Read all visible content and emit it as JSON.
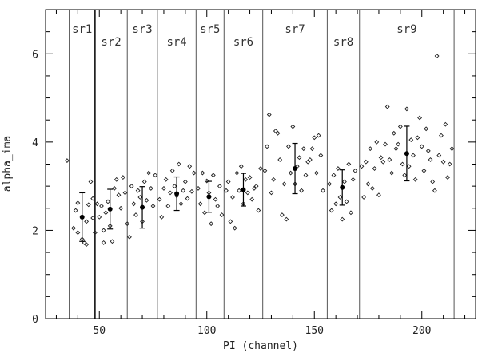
{
  "chart_data": {
    "type": "scatter",
    "title": "",
    "xlabel": "PI (channel)",
    "ylabel": "alpha_ima",
    "xlim": [
      25,
      225
    ],
    "ylim": [
      0,
      7
    ],
    "xticks": [
      50,
      100,
      150,
      200
    ],
    "yticks": [
      0,
      2,
      4,
      6
    ],
    "grid": false,
    "regions": [
      {
        "label": "sr1",
        "start": 36,
        "end": 48
      },
      {
        "label": "sr2",
        "start": 48,
        "end": 63
      },
      {
        "label": "sr3",
        "start": 63,
        "end": 77
      },
      {
        "label": "sr4",
        "start": 77,
        "end": 95
      },
      {
        "label": "sr5",
        "start": 95,
        "end": 108
      },
      {
        "label": "sr6",
        "start": 108,
        "end": 126
      },
      {
        "label": "sr7",
        "start": 126,
        "end": 156
      },
      {
        "label": "sr8",
        "start": 156,
        "end": 171
      },
      {
        "label": "sr9",
        "start": 171,
        "end": 215
      }
    ],
    "region_means": [
      {
        "x": 42,
        "y": 2.3,
        "err": 0.55
      },
      {
        "x": 55,
        "y": 2.48,
        "err": 0.45
      },
      {
        "x": 70,
        "y": 2.52,
        "err": 0.47
      },
      {
        "x": 86,
        "y": 2.83,
        "err": 0.38
      },
      {
        "x": 101,
        "y": 2.76,
        "err": 0.35
      },
      {
        "x": 117,
        "y": 2.92,
        "err": 0.37
      },
      {
        "x": 141,
        "y": 3.4,
        "err": 0.57
      },
      {
        "x": 163,
        "y": 2.97,
        "err": 0.4
      },
      {
        "x": 193,
        "y": 3.74,
        "err": 0.62
      }
    ],
    "points": [
      [
        35,
        3.58
      ],
      [
        38,
        2.05
      ],
      [
        39,
        2.45
      ],
      [
        40,
        2.62
      ],
      [
        40,
        1.95
      ],
      [
        42,
        1.8
      ],
      [
        43,
        1.72
      ],
      [
        44,
        1.68
      ],
      [
        44,
        2.2
      ],
      [
        45,
        2.58
      ],
      [
        46,
        3.1
      ],
      [
        47,
        2.72
      ],
      [
        47,
        2.28
      ],
      [
        48,
        1.95
      ],
      [
        49,
        2.6
      ],
      [
        50,
        2.3
      ],
      [
        51,
        2.55
      ],
      [
        52,
        2.0
      ],
      [
        52,
        1.72
      ],
      [
        53,
        2.4
      ],
      [
        54,
        2.65
      ],
      [
        55,
        2.1
      ],
      [
        56,
        1.75
      ],
      [
        57,
        2.95
      ],
      [
        58,
        3.15
      ],
      [
        59,
        2.8
      ],
      [
        60,
        2.5
      ],
      [
        61,
        3.2
      ],
      [
        62,
        2.85
      ],
      [
        63,
        2.15
      ],
      [
        64,
        1.85
      ],
      [
        65,
        3.0
      ],
      [
        66,
        2.6
      ],
      [
        67,
        2.35
      ],
      [
        68,
        2.9
      ],
      [
        69,
        2.75
      ],
      [
        70,
        2.2
      ],
      [
        71,
        3.1
      ],
      [
        72,
        2.68
      ],
      [
        73,
        3.3
      ],
      [
        74,
        2.95
      ],
      [
        75,
        2.55
      ],
      [
        76,
        3.25
      ],
      [
        78,
        2.7
      ],
      [
        79,
        2.3
      ],
      [
        80,
        2.95
      ],
      [
        81,
        3.15
      ],
      [
        82,
        2.55
      ],
      [
        83,
        2.85
      ],
      [
        84,
        3.35
      ],
      [
        85,
        3.0
      ],
      [
        86,
        2.78
      ],
      [
        87,
        3.5
      ],
      [
        88,
        2.6
      ],
      [
        89,
        2.9
      ],
      [
        90,
        3.1
      ],
      [
        91,
        2.72
      ],
      [
        92,
        3.45
      ],
      [
        93,
        2.88
      ],
      [
        94,
        3.3
      ],
      [
        96,
        2.95
      ],
      [
        97,
        2.6
      ],
      [
        98,
        3.3
      ],
      [
        99,
        2.4
      ],
      [
        100,
        3.12
      ],
      [
        101,
        2.85
      ],
      [
        102,
        2.15
      ],
      [
        103,
        3.25
      ],
      [
        104,
        2.7
      ],
      [
        105,
        2.55
      ],
      [
        106,
        3.0
      ],
      [
        107,
        2.35
      ],
      [
        109,
        2.9
      ],
      [
        110,
        3.1
      ],
      [
        111,
        2.2
      ],
      [
        112,
        2.75
      ],
      [
        113,
        2.05
      ],
      [
        114,
        3.3
      ],
      [
        115,
        2.9
      ],
      [
        116,
        3.45
      ],
      [
        117,
        2.6
      ],
      [
        118,
        3.15
      ],
      [
        119,
        2.85
      ],
      [
        120,
        3.2
      ],
      [
        121,
        2.7
      ],
      [
        122,
        2.95
      ],
      [
        123,
        3.0
      ],
      [
        124,
        2.45
      ],
      [
        125,
        3.4
      ],
      [
        127,
        3.35
      ],
      [
        128,
        3.9
      ],
      [
        129,
        4.62
      ],
      [
        130,
        2.85
      ],
      [
        131,
        3.15
      ],
      [
        132,
        4.25
      ],
      [
        133,
        4.2
      ],
      [
        134,
        3.6
      ],
      [
        135,
        2.35
      ],
      [
        136,
        3.05
      ],
      [
        137,
        2.25
      ],
      [
        138,
        3.9
      ],
      [
        139,
        3.3
      ],
      [
        140,
        4.35
      ],
      [
        141,
        3.05
      ],
      [
        142,
        3.45
      ],
      [
        143,
        3.65
      ],
      [
        144,
        2.9
      ],
      [
        145,
        3.85
      ],
      [
        146,
        3.25
      ],
      [
        147,
        3.55
      ],
      [
        148,
        3.6
      ],
      [
        149,
        3.85
      ],
      [
        150,
        4.1
      ],
      [
        151,
        3.3
      ],
      [
        152,
        4.15
      ],
      [
        153,
        3.7
      ],
      [
        154,
        2.9
      ],
      [
        157,
        3.05
      ],
      [
        158,
        2.45
      ],
      [
        159,
        3.25
      ],
      [
        160,
        2.6
      ],
      [
        161,
        3.4
      ],
      [
        162,
        2.75
      ],
      [
        163,
        2.25
      ],
      [
        164,
        3.1
      ],
      [
        165,
        2.65
      ],
      [
        166,
        3.5
      ],
      [
        167,
        2.4
      ],
      [
        168,
        3.15
      ],
      [
        169,
        3.35
      ],
      [
        172,
        3.45
      ],
      [
        173,
        2.75
      ],
      [
        174,
        3.55
      ],
      [
        175,
        3.05
      ],
      [
        176,
        3.85
      ],
      [
        177,
        2.95
      ],
      [
        178,
        3.4
      ],
      [
        179,
        4.0
      ],
      [
        180,
        2.8
      ],
      [
        181,
        3.65
      ],
      [
        182,
        3.55
      ],
      [
        183,
        3.95
      ],
      [
        184,
        4.8
      ],
      [
        185,
        3.6
      ],
      [
        186,
        3.3
      ],
      [
        187,
        4.2
      ],
      [
        188,
        3.85
      ],
      [
        189,
        3.95
      ],
      [
        190,
        4.35
      ],
      [
        191,
        3.5
      ],
      [
        192,
        3.25
      ],
      [
        193,
        4.75
      ],
      [
        194,
        3.45
      ],
      [
        195,
        4.05
      ],
      [
        196,
        3.7
      ],
      [
        197,
        3.15
      ],
      [
        198,
        4.1
      ],
      [
        199,
        4.55
      ],
      [
        200,
        3.9
      ],
      [
        201,
        3.35
      ],
      [
        202,
        4.3
      ],
      [
        203,
        3.8
      ],
      [
        204,
        3.6
      ],
      [
        205,
        3.1
      ],
      [
        206,
        2.9
      ],
      [
        207,
        5.95
      ],
      [
        208,
        3.7
      ],
      [
        209,
        4.15
      ],
      [
        210,
        3.55
      ],
      [
        211,
        4.4
      ],
      [
        212,
        3.2
      ],
      [
        213,
        3.5
      ],
      [
        214,
        3.85
      ]
    ]
  }
}
